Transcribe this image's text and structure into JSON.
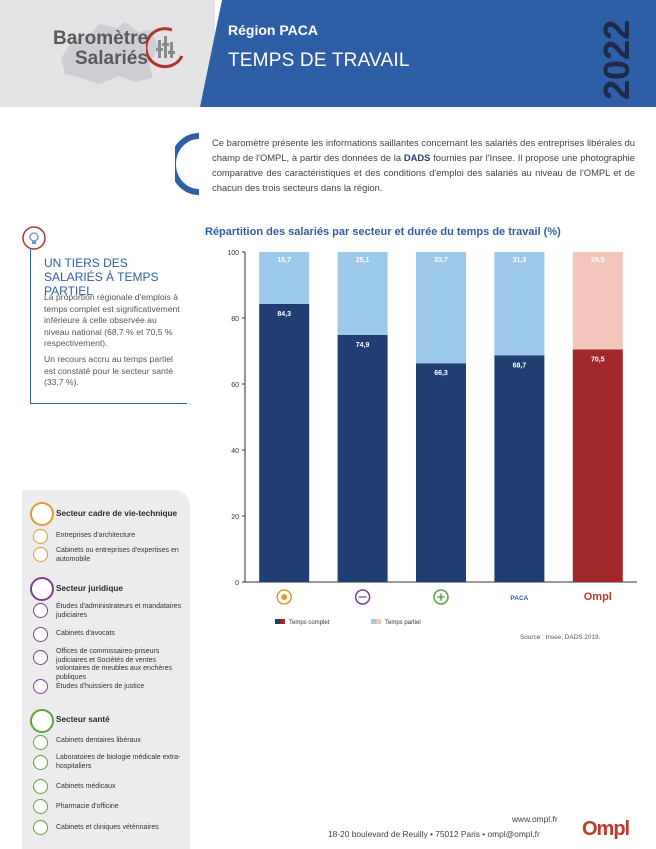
{
  "header": {
    "logo_line1": "Baromètre",
    "logo_line2": "Salariés",
    "region": "Région PACA",
    "title": "TEMPS DE TRAVAIL",
    "year": "2022"
  },
  "intro": {
    "text_before": "Ce baromètre présente les informations saillantes concernant les salariés des entreprises libérales du champ de l'OMPL, à partir des données de la ",
    "bold": "DADS",
    "text_after": " fournies par l'Insee. Il propose une photographie comparative des caractéristiques et des conditions d'emploi des salariés au niveau de l'OMPL et de chacun des trois secteurs dans la région."
  },
  "highlight": {
    "title": "UN TIERS DES SALARIÉS À TEMPS PARTIEL",
    "para1": "La proportion régionale d'emplois à temps complet est significativement inférieure à celle observée au niveau national (68,7 % et 70,5 % respectivement).",
    "para2": "Un recours accru au temps partiel est constaté pour le secteur santé (33,7 %)."
  },
  "sectors": [
    {
      "name": "Secteur cadre de vie-technique",
      "color": "#e59a2c",
      "items": [
        "Entreprises d'architecture",
        "Cabinets ou entreprises d'expertises en automobile"
      ]
    },
    {
      "name": "Secteur juridique",
      "color": "#7b3f8c",
      "items": [
        "Études d'administrateurs et mandataires judiciaires",
        "Cabinets d'avocats",
        "Offices de commissaires-priseurs judiciaires et Sociétés de ventes volontaires de meubles aux enchères publiques",
        "Études d'huissiers de justice"
      ]
    },
    {
      "name": "Secteur santé",
      "color": "#5aa53a",
      "items": [
        "Cabinets dentaires libéraux",
        "Laboratoires de biologie médicale extra-hospitaliers",
        "Cabinets médicaux",
        "Pharmacie d'officine",
        "Cabinets et cliniques vétérinaires"
      ]
    }
  ],
  "chart_data": {
    "type": "bar",
    "stacked": true,
    "title": "Répartition des salariés par secteur et durée du temps de travail (%)",
    "categories": [
      "cadre-de-vie-icon",
      "juridique-icon",
      "sante-icon",
      "PACA",
      "Ompl"
    ],
    "category_labels": [
      "",
      "",
      "",
      "PACA",
      "Ompl"
    ],
    "series": [
      {
        "name": "Temps complet",
        "values": [
          84.3,
          74.9,
          66.3,
          68.7,
          70.5
        ],
        "labels": [
          "84,3",
          "74,9",
          "66,3",
          "68,7",
          "70,5"
        ],
        "color": "#1f3f73",
        "ompl_color": "#a1282a"
      },
      {
        "name": "Temps partiel",
        "values": [
          15.7,
          25.1,
          33.7,
          31.3,
          29.5
        ],
        "labels": [
          "15,7",
          "25,1",
          "33,7",
          "31,3",
          "29,5"
        ],
        "color": "#9cc9ea",
        "ompl_color": "#f2c6bb"
      }
    ],
    "ylim": [
      0,
      100
    ],
    "yticks": [
      0,
      20,
      40,
      60,
      80,
      100
    ],
    "legend_position": "bottom-left",
    "source": "Source : Insee, DADS 2019."
  },
  "footer": {
    "url": "www.ompl.fr",
    "address": "18-20 boulevard de Reuilly  •  75012 Paris  •  ompl@ompl.fr",
    "logo": "Ompl"
  }
}
